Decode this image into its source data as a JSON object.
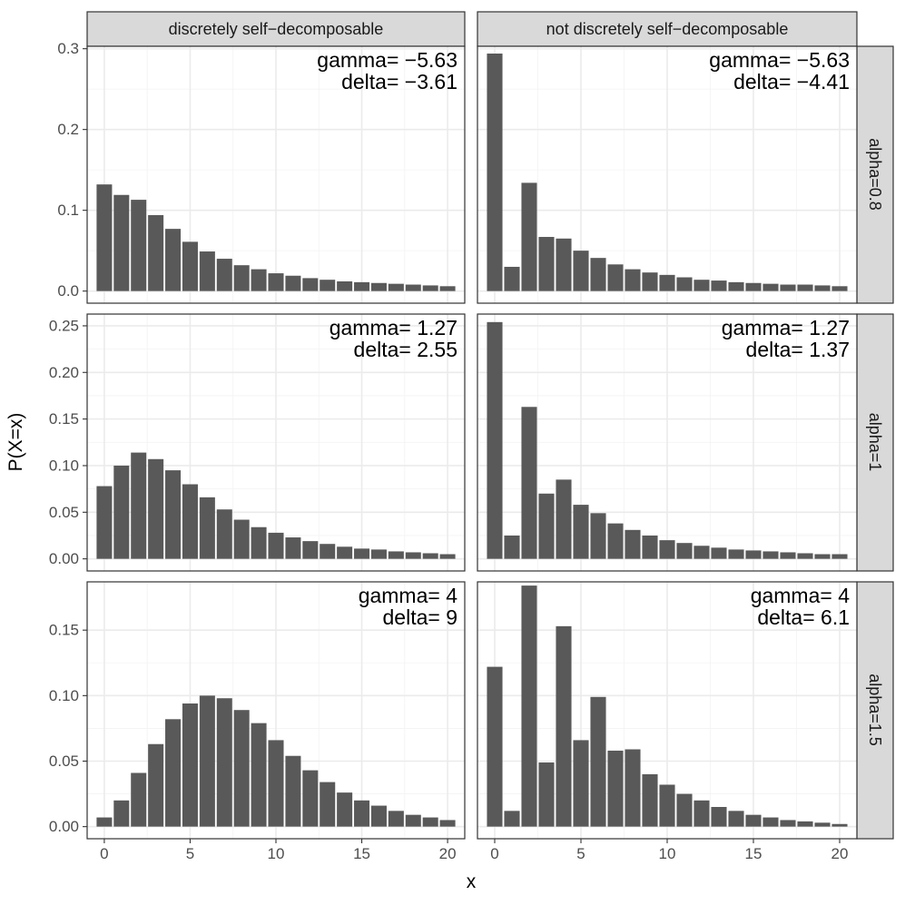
{
  "chart_data": {
    "type": "bar",
    "xlabel": "x",
    "ylabel": "P(X=x)",
    "col_facets": [
      "discretely self−decomposable",
      "not discretely self−decomposable"
    ],
    "row_facets": [
      "alpha=0.8",
      "alpha=1",
      "alpha=1.5"
    ],
    "x_ticks": [
      0,
      5,
      10,
      15,
      20
    ],
    "x_tick_labels": [
      "0",
      "5",
      "10",
      "15",
      "20"
    ],
    "xlim": [
      -1,
      21
    ],
    "rows": [
      {
        "ylim": [
          0,
          0.3
        ],
        "y_ticks": [
          0.0,
          0.1,
          0.2,
          0.3
        ],
        "y_tick_labels": [
          "0.0",
          "0.1",
          "0.2",
          "0.3"
        ],
        "panels": [
          {
            "gamma_text": "gamma= −5.63",
            "delta_text": "delta= −3.61",
            "x": [
              0,
              1,
              2,
              3,
              4,
              5,
              6,
              7,
              8,
              9,
              10,
              11,
              12,
              13,
              14,
              15,
              16,
              17,
              18,
              19,
              20
            ],
            "values": [
              0.132,
              0.119,
              0.113,
              0.094,
              0.077,
              0.061,
              0.049,
              0.04,
              0.032,
              0.027,
              0.022,
              0.019,
              0.016,
              0.014,
              0.012,
              0.011,
              0.01,
              0.009,
              0.008,
              0.007,
              0.006
            ]
          },
          {
            "gamma_text": "gamma= −5.63",
            "delta_text": "delta= −4.41",
            "x": [
              0,
              1,
              2,
              3,
              4,
              5,
              6,
              7,
              8,
              9,
              10,
              11,
              12,
              13,
              14,
              15,
              16,
              17,
              18,
              19,
              20
            ],
            "values": [
              0.294,
              0.03,
              0.134,
              0.067,
              0.065,
              0.05,
              0.041,
              0.033,
              0.027,
              0.023,
              0.02,
              0.017,
              0.014,
              0.013,
              0.011,
              0.01,
              0.009,
              0.008,
              0.008,
              0.007,
              0.006
            ]
          }
        ]
      },
      {
        "ylim": [
          0,
          0.26
        ],
        "y_ticks": [
          0.0,
          0.05,
          0.1,
          0.15,
          0.2,
          0.25
        ],
        "y_tick_labels": [
          "0.00",
          "0.05",
          "0.10",
          "0.15",
          "0.20",
          "0.25"
        ],
        "panels": [
          {
            "gamma_text": "gamma= 1.27",
            "delta_text": "delta= 2.55",
            "x": [
              0,
              1,
              2,
              3,
              4,
              5,
              6,
              7,
              8,
              9,
              10,
              11,
              12,
              13,
              14,
              15,
              16,
              17,
              18,
              19,
              20
            ],
            "values": [
              0.078,
              0.1,
              0.114,
              0.107,
              0.095,
              0.08,
              0.066,
              0.053,
              0.042,
              0.034,
              0.028,
              0.023,
              0.019,
              0.016,
              0.013,
              0.011,
              0.01,
              0.008,
              0.007,
              0.006,
              0.005
            ]
          },
          {
            "gamma_text": "gamma= 1.27",
            "delta_text": "delta= 1.37",
            "x": [
              0,
              1,
              2,
              3,
              4,
              5,
              6,
              7,
              8,
              9,
              10,
              11,
              12,
              13,
              14,
              15,
              16,
              17,
              18,
              19,
              20
            ],
            "values": [
              0.254,
              0.025,
              0.163,
              0.07,
              0.085,
              0.058,
              0.049,
              0.038,
              0.031,
              0.025,
              0.02,
              0.017,
              0.014,
              0.012,
              0.01,
              0.009,
              0.008,
              0.007,
              0.006,
              0.005,
              0.005
            ]
          }
        ]
      },
      {
        "ylim": [
          0,
          0.185
        ],
        "y_ticks": [
          0.0,
          0.05,
          0.1,
          0.15
        ],
        "y_tick_labels": [
          "0.00",
          "0.05",
          "0.10",
          "0.15"
        ],
        "panels": [
          {
            "gamma_text": "gamma= 4",
            "delta_text": "delta= 9",
            "x": [
              0,
              1,
              2,
              3,
              4,
              5,
              6,
              7,
              8,
              9,
              10,
              11,
              12,
              13,
              14,
              15,
              16,
              17,
              18,
              19,
              20
            ],
            "values": [
              0.007,
              0.02,
              0.041,
              0.063,
              0.082,
              0.094,
              0.1,
              0.098,
              0.089,
              0.079,
              0.066,
              0.054,
              0.043,
              0.034,
              0.026,
              0.02,
              0.016,
              0.012,
              0.009,
              0.007,
              0.005
            ]
          },
          {
            "gamma_text": "gamma= 4",
            "delta_text": "delta= 6.1",
            "x": [
              0,
              1,
              2,
              3,
              4,
              5,
              6,
              7,
              8,
              9,
              10,
              11,
              12,
              13,
              14,
              15,
              16,
              17,
              18,
              19,
              20
            ],
            "values": [
              0.122,
              0.012,
              0.184,
              0.049,
              0.153,
              0.066,
              0.099,
              0.058,
              0.059,
              0.04,
              0.032,
              0.025,
              0.02,
              0.015,
              0.012,
              0.009,
              0.007,
              0.005,
              0.004,
              0.003,
              0.002
            ]
          }
        ]
      }
    ]
  }
}
